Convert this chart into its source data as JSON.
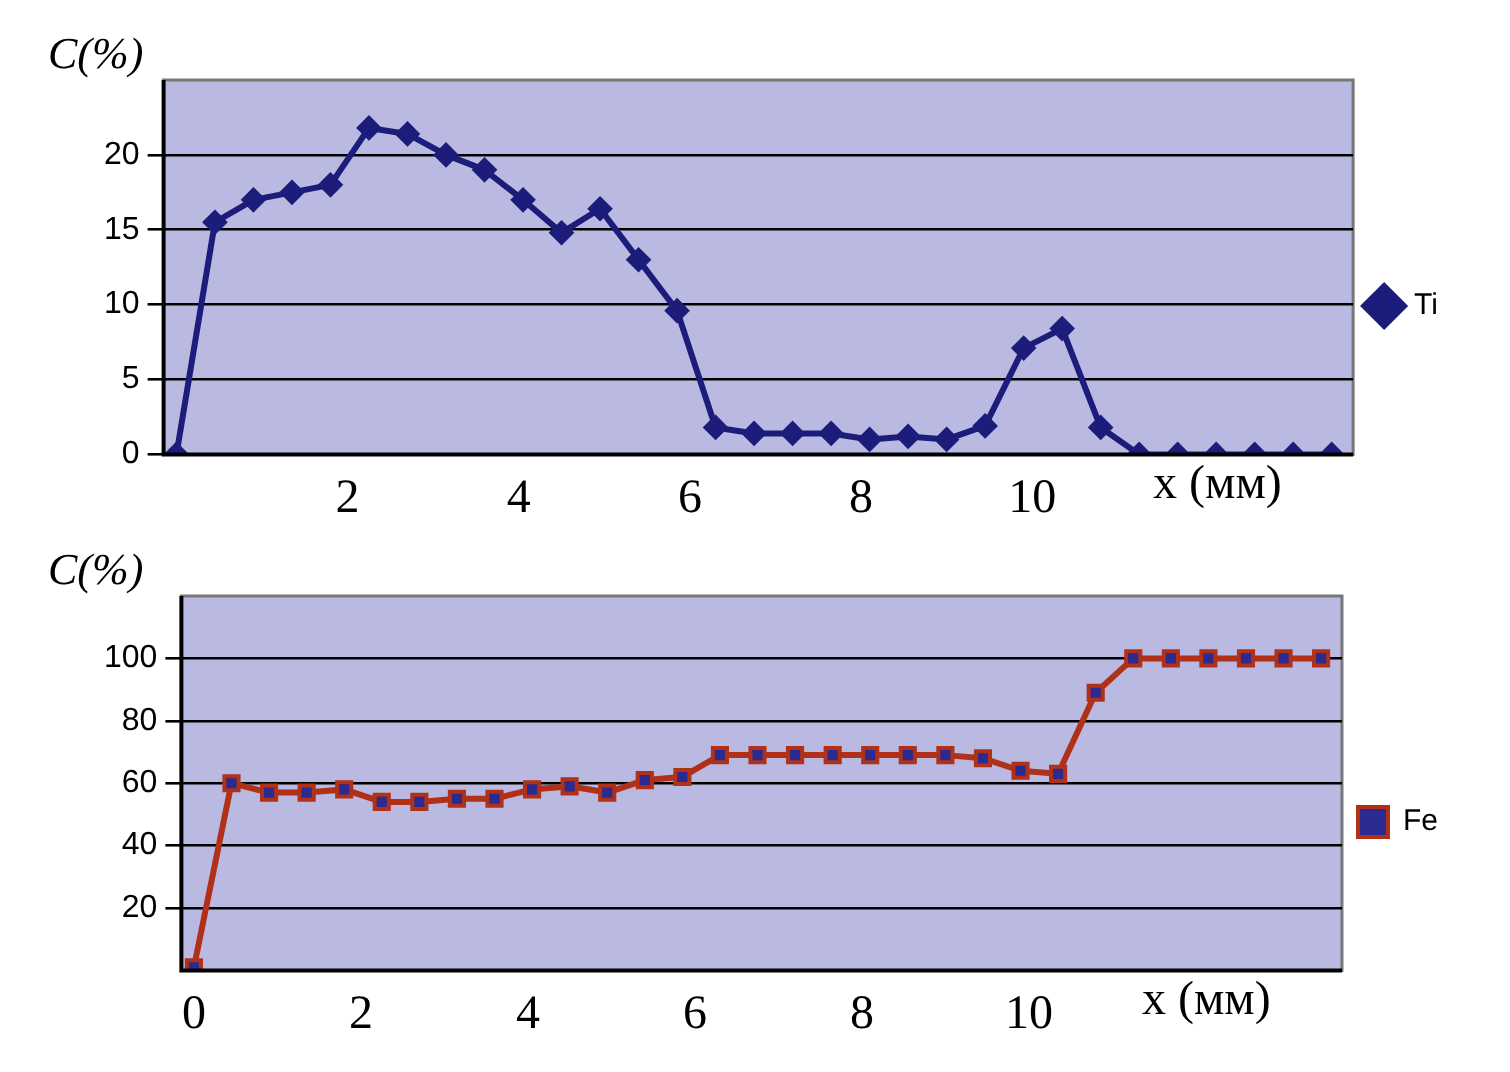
{
  "chart_data": [
    {
      "type": "line",
      "ylabel": "C(%)",
      "xlabel": "x (мм)",
      "x": [
        0,
        0.45,
        0.9,
        1.35,
        1.8,
        2.25,
        2.7,
        3.15,
        3.6,
        4.05,
        4.5,
        4.95,
        5.4,
        5.85,
        6.3,
        6.75,
        7.2,
        7.65,
        8.1,
        8.55,
        9,
        9.45,
        9.9,
        10.35,
        10.8,
        11.25,
        11.7,
        12.15,
        12.6,
        13.05,
        13.5
      ],
      "series": [
        {
          "name": "Ti",
          "color": "#1c1c7a",
          "values": [
            0,
            15.5,
            17,
            17.5,
            18,
            21.8,
            21.4,
            20,
            19,
            17,
            14.8,
            16.4,
            13,
            9.6,
            1.8,
            1.4,
            1.4,
            1.4,
            1,
            1.2,
            1,
            1.9,
            7.1,
            8.4,
            1.8,
            0,
            0,
            0,
            0,
            0,
            0
          ]
        }
      ],
      "xlim": [
        -0.15,
        13.75
      ],
      "xticks": [
        2,
        4,
        6,
        8,
        10
      ],
      "ylim": [
        0,
        25
      ],
      "yticks": [
        0,
        5,
        10,
        15,
        20
      ],
      "grid": "y",
      "legend": "right",
      "marker": "diamond"
    },
    {
      "type": "line",
      "ylabel": "C(%)",
      "xlabel": "x (мм)",
      "x": [
        0,
        0.45,
        0.9,
        1.35,
        1.8,
        2.25,
        2.7,
        3.15,
        3.6,
        4.05,
        4.5,
        4.95,
        5.4,
        5.85,
        6.3,
        6.75,
        7.2,
        7.65,
        8.1,
        8.55,
        9,
        9.45,
        9.9,
        10.35,
        10.8,
        11.25,
        11.7,
        12.15,
        12.6,
        13.05,
        13.5
      ],
      "series": [
        {
          "name": "Fe",
          "color": "#b03018",
          "values": [
            1,
            60,
            57,
            57,
            58,
            54,
            54,
            55,
            55,
            58,
            59,
            57,
            61,
            62,
            69,
            69,
            69,
            69,
            69,
            69,
            69,
            68,
            64,
            63,
            89,
            100,
            100,
            100,
            100,
            100,
            100
          ]
        }
      ],
      "xlim": [
        -0.15,
        13.75
      ],
      "xticks": [
        0,
        2,
        4,
        6,
        8,
        10
      ],
      "ylim": [
        0,
        120
      ],
      "yticks": [
        20,
        40,
        60,
        80,
        100
      ],
      "grid": "y",
      "legend": "right",
      "marker": "square"
    }
  ]
}
